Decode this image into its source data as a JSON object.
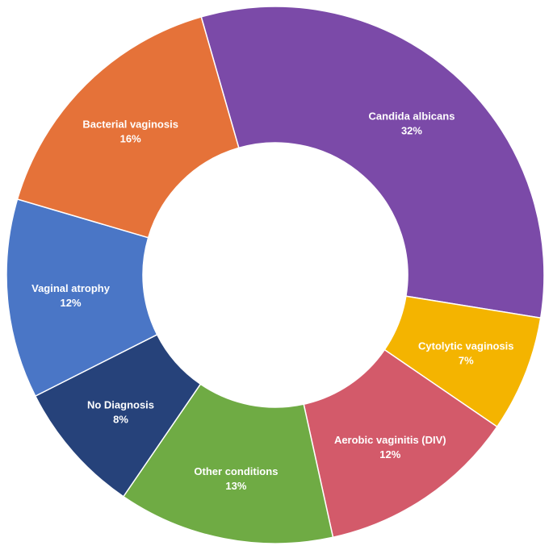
{
  "chart_data": {
    "type": "pie",
    "title": "",
    "style": "donut",
    "slices": [
      {
        "label": "Candida albicans",
        "value": 32,
        "value_label": "32%",
        "color": "#7B4AA8"
      },
      {
        "label": "Cytolytic vaginosis",
        "value": 7,
        "value_label": "7%",
        "color": "#F4B400"
      },
      {
        "label": "Aerobic vaginitis (DIV)",
        "value": 12,
        "value_label": "12%",
        "color": "#D35A6A"
      },
      {
        "label": "Other conditions",
        "value": 13,
        "value_label": "13%",
        "color": "#6FAB44"
      },
      {
        "label": "No Diagnosis",
        "value": 8,
        "value_label": "8%",
        "color": "#26427A"
      },
      {
        "label": "Vaginal atrophy",
        "value": 12,
        "value_label": "12%",
        "color": "#4A76C6"
      },
      {
        "label": "Bacterial vaginosis",
        "value": 16,
        "value_label": "16%",
        "color": "#E57239"
      }
    ],
    "legend": "none",
    "labels": "on-slice"
  }
}
